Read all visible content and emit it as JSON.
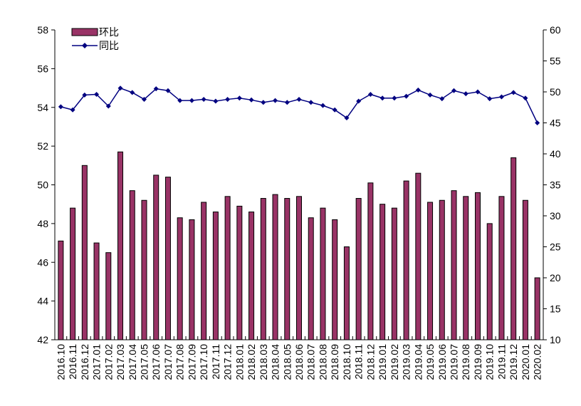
{
  "chart_data": {
    "type": "bar+line",
    "title": "",
    "xlabel": "",
    "ylabel": "",
    "categories": [
      "2016.10",
      "2016.11",
      "2016.12",
      "2017.01",
      "2017.02",
      "2017.03",
      "2017.04",
      "2017.05",
      "2017.06",
      "2017.07",
      "2017.08",
      "2017.09",
      "2017.10",
      "2017.11",
      "2017.12",
      "2018.01",
      "2018.02",
      "2018.03",
      "2018.04",
      "2018.05",
      "2018.06",
      "2018.07",
      "2018.08",
      "2018.09",
      "2018.10",
      "2018.11",
      "2018.12",
      "2019.01",
      "2019.02",
      "2019.03",
      "2019.04",
      "2019.05",
      "2019.06",
      "2019.07",
      "2019.08",
      "2019.09",
      "2019.10",
      "2019.11",
      "2019.12",
      "2020.01",
      "2020.02"
    ],
    "y_left": {
      "min": 42,
      "max": 58,
      "step": 2,
      "ticks": [
        "42",
        "44",
        "46",
        "48",
        "50",
        "52",
        "54",
        "56",
        "58"
      ]
    },
    "y_right": {
      "min": 10,
      "max": 60,
      "step": 5,
      "ticks": [
        "10",
        "15",
        "20",
        "25",
        "30",
        "35",
        "40",
        "45",
        "50",
        "55",
        "60"
      ]
    },
    "series": [
      {
        "name": "环比",
        "type": "bar",
        "axis": "left",
        "color": "#993366",
        "values": [
          47.1,
          48.8,
          51.0,
          47.0,
          46.5,
          51.7,
          49.7,
          49.2,
          50.5,
          50.4,
          48.3,
          48.2,
          49.1,
          48.6,
          49.4,
          48.9,
          48.6,
          49.3,
          49.5,
          49.3,
          49.4,
          48.3,
          48.8,
          48.2,
          46.8,
          49.3,
          50.1,
          49.0,
          48.8,
          50.2,
          50.6,
          49.1,
          49.2,
          49.7,
          49.4,
          49.6,
          48.0,
          49.4,
          51.4,
          49.2,
          45.2
        ]
      },
      {
        "name": "同比",
        "type": "line",
        "axis": "right",
        "color": "#000080",
        "values": [
          47.6,
          47.1,
          49.5,
          49.6,
          47.7,
          50.6,
          49.9,
          48.8,
          50.5,
          50.2,
          48.6,
          48.6,
          48.8,
          48.5,
          48.8,
          49.0,
          48.7,
          48.3,
          48.6,
          48.3,
          48.8,
          48.3,
          47.8,
          47.1,
          45.8,
          48.5,
          49.6,
          49.0,
          49.0,
          49.3,
          50.3,
          49.5,
          48.9,
          50.2,
          49.7,
          50.0,
          48.9,
          49.2,
          49.9,
          49.0,
          45.0
        ]
      }
    ],
    "legend": {
      "position": "top-left"
    }
  }
}
